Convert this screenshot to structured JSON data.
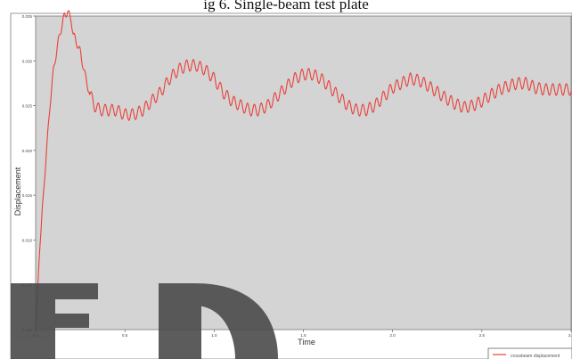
{
  "caption": "ig 6. Single-beam test plate",
  "chart_data": {
    "type": "line",
    "title": "",
    "xlabel": "Time",
    "ylabel": "Displacement",
    "xlim": [
      0,
      3.0
    ],
    "ylim": [
      0,
      0.035
    ],
    "x_ticks": [
      "0.0",
      "0.5",
      "1.0",
      "1.5",
      "2.0",
      "2.5",
      "3.0"
    ],
    "x_tick_values": [
      0,
      0.5,
      1.0,
      1.5,
      2.0,
      2.5,
      3.0
    ],
    "y_ticks": [
      "0.000",
      "0.005",
      "0.010",
      "0.015",
      "0.020",
      "0.025",
      "0.030",
      "0.035"
    ],
    "y_tick_values": [
      0,
      0.005,
      0.01,
      0.015,
      0.02,
      0.025,
      0.03,
      0.035
    ],
    "grid": false,
    "legend": "bottom-right",
    "background": "#d4d4d4",
    "series": [
      {
        "name": "crossbeam displacement",
        "color": "#e8403a",
        "x": [
          0.0,
          0.02,
          0.05,
          0.08,
          0.1,
          0.13,
          0.16,
          0.18,
          0.2,
          0.21,
          0.23,
          0.25,
          0.27,
          0.3,
          0.33,
          0.36,
          0.4,
          0.45,
          0.5,
          0.55,
          0.6,
          0.65,
          0.7,
          0.75,
          0.8,
          0.85,
          0.9,
          0.95,
          1.0,
          1.05,
          1.1,
          1.15,
          1.2,
          1.25,
          1.3,
          1.35,
          1.4,
          1.45,
          1.5,
          1.55,
          1.6,
          1.65,
          1.7,
          1.75,
          1.8,
          1.85,
          1.9,
          1.95,
          2.0,
          2.05,
          2.1,
          2.15,
          2.2,
          2.25,
          2.3,
          2.35,
          2.4,
          2.45,
          2.5,
          2.55,
          2.6,
          2.65,
          2.7,
          2.75,
          2.8,
          2.85,
          2.9,
          2.95,
          3.0
        ],
        "y": [
          0.0,
          0.008,
          0.017,
          0.025,
          0.029,
          0.0325,
          0.035,
          0.0355,
          0.0345,
          0.033,
          0.032,
          0.031,
          0.029,
          0.0265,
          0.025,
          0.0245,
          0.0245,
          0.0245,
          0.024,
          0.024,
          0.0245,
          0.0255,
          0.0265,
          0.028,
          0.029,
          0.0295,
          0.0295,
          0.029,
          0.028,
          0.0265,
          0.0255,
          0.025,
          0.0245,
          0.0245,
          0.025,
          0.026,
          0.027,
          0.028,
          0.0285,
          0.0285,
          0.028,
          0.027,
          0.026,
          0.025,
          0.0245,
          0.0245,
          0.025,
          0.026,
          0.027,
          0.0275,
          0.028,
          0.0278,
          0.0272,
          0.0265,
          0.0258,
          0.0252,
          0.0248,
          0.025,
          0.0255,
          0.0262,
          0.0268,
          0.0272,
          0.0275,
          0.0275,
          0.027,
          0.0268,
          0.0268,
          0.0268,
          0.0268
        ]
      }
    ],
    "legend_entries": [
      "crossbeam displacement"
    ]
  },
  "watermark": {
    "color": "#4a4a4a"
  }
}
